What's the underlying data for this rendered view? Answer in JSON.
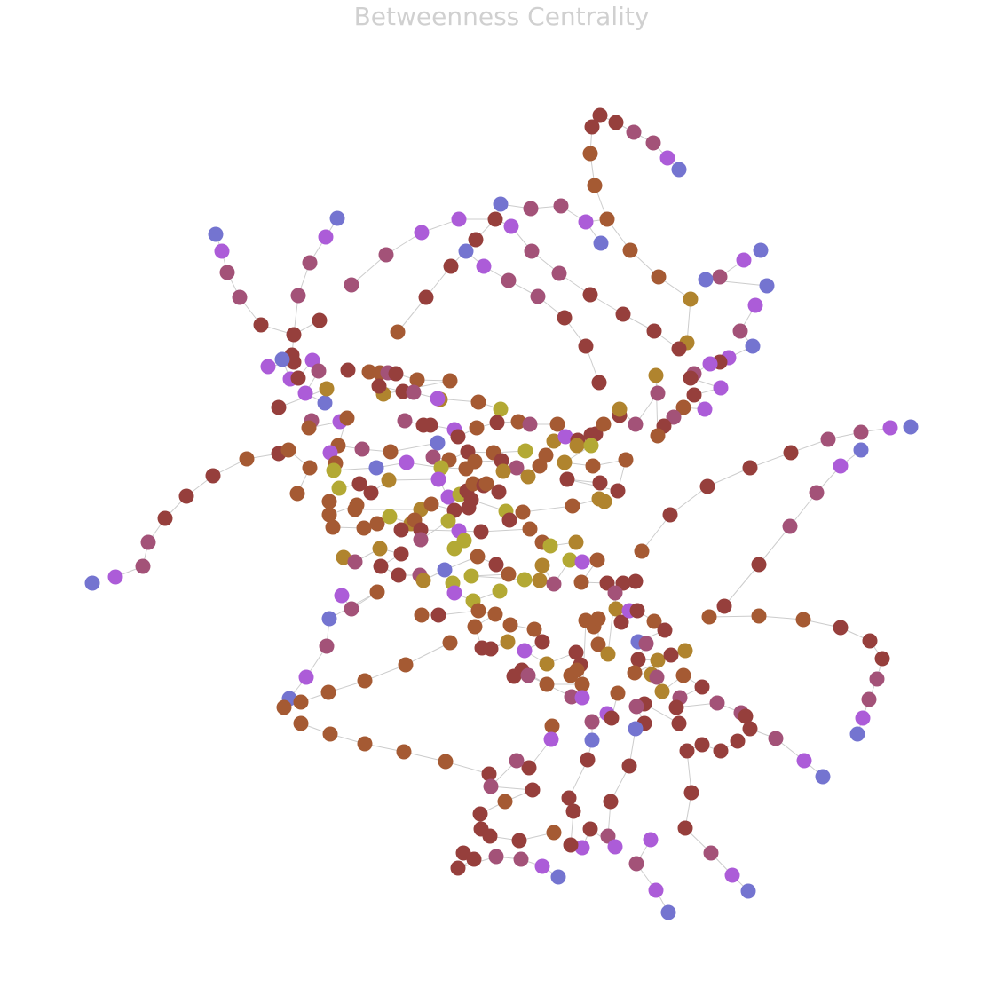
{
  "title": "Betweenness Centrality",
  "colors": {
    "low": "#7474d0",
    "low_mid": "#ac5cd8",
    "mid": "#a35278",
    "high": "#963f3c",
    "higher": "#a55a33",
    "very_high": "#b0842e",
    "max": "#b3a934",
    "edge": "#cccccc"
  }
}
